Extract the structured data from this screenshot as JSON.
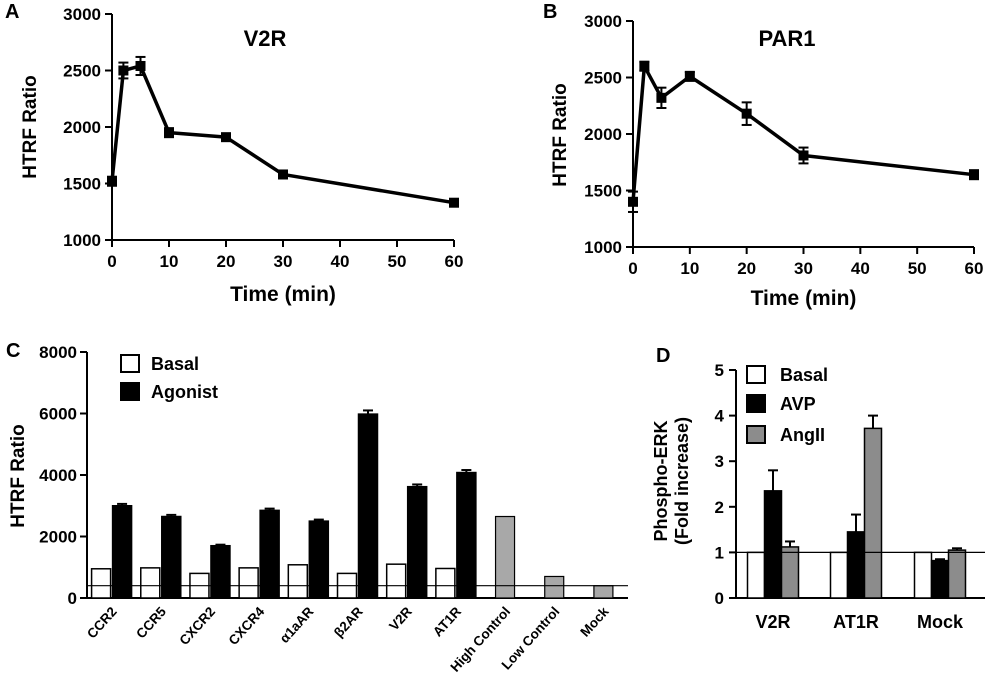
{
  "colors": {
    "basal": "#ffffff",
    "agonist": "#000000",
    "control": "#a8a8a8",
    "angii": "#8c8c8c",
    "ink": "#000000"
  },
  "chart_data": [
    {
      "id": "A",
      "panel_label": "A",
      "type": "line",
      "title": "V2R",
      "xlabel": "Time (min)",
      "ylabel": "HTRF Ratio",
      "xlim": [
        0,
        60
      ],
      "ylim": [
        1000,
        3000
      ],
      "xticks": [
        0,
        10,
        20,
        30,
        40,
        50,
        60
      ],
      "yticks": [
        1000,
        1500,
        2000,
        2500,
        3000
      ],
      "x": [
        0,
        2,
        5,
        10,
        20,
        30,
        60
      ],
      "y": [
        1520,
        2500,
        2540,
        1950,
        1910,
        1580,
        1330
      ],
      "err": [
        40,
        70,
        80,
        40,
        15,
        35,
        15
      ]
    },
    {
      "id": "B",
      "panel_label": "B",
      "type": "line",
      "title": "PAR1",
      "xlabel": "Time (min)",
      "ylabel": "HTRF Ratio",
      "xlim": [
        0,
        60
      ],
      "ylim": [
        1000,
        3000
      ],
      "xticks": [
        0,
        10,
        20,
        30,
        40,
        50,
        60
      ],
      "yticks": [
        1000,
        1500,
        2000,
        2500,
        3000
      ],
      "x": [
        0,
        2,
        5,
        10,
        20,
        30,
        60
      ],
      "y": [
        1400,
        2600,
        2320,
        2510,
        2180,
        1810,
        1640
      ],
      "err": [
        90,
        40,
        90,
        40,
        100,
        70,
        40
      ]
    },
    {
      "id": "C",
      "panel_label": "C",
      "type": "bar",
      "title": "",
      "xlabel": "",
      "ylabel": "HTRF Ratio",
      "ylim": [
        0,
        8000
      ],
      "yticks": [
        0,
        2000,
        4000,
        6000,
        8000
      ],
      "legend": [
        "Basal",
        "Agonist"
      ],
      "reference_line": 400,
      "categories": [
        "CCR2",
        "CCR5",
        "CXCR2",
        "CXCR4",
        "α1aAR",
        "β2AR",
        "V2R",
        "AT1R",
        "High Control",
        "Low Control",
        "Mock"
      ],
      "series": [
        {
          "name": "Basal",
          "values": [
            950,
            980,
            800,
            980,
            1080,
            800,
            1100,
            960,
            null,
            null,
            null
          ]
        },
        {
          "name": "Agonist",
          "values": [
            3000,
            2650,
            1700,
            2850,
            2500,
            5980,
            3620,
            4080,
            null,
            null,
            null
          ]
        }
      ],
      "controls": [
        {
          "category": "High Control",
          "value": 2650
        },
        {
          "category": "Low Control",
          "value": 700
        },
        {
          "category": "Mock",
          "value": 400
        }
      ]
    },
    {
      "id": "D",
      "panel_label": "D",
      "type": "bar",
      "title": "",
      "xlabel": "",
      "ylabel": "Phospho-ERK",
      "ylabel2": "(Fold increase)",
      "ylim": [
        0,
        5
      ],
      "yticks": [
        0,
        1,
        2,
        3,
        4,
        5
      ],
      "legend": [
        "Basal",
        "AVP",
        "AngII"
      ],
      "reference_line": 1,
      "categories": [
        "V2R",
        "AT1R",
        "Mock"
      ],
      "series": [
        {
          "name": "Basal",
          "values": [
            1.0,
            1.0,
            1.0
          ],
          "err": [
            0,
            0,
            0
          ]
        },
        {
          "name": "AVP",
          "values": [
            2.35,
            1.45,
            0.82
          ],
          "err": [
            0.45,
            0.38,
            0.03
          ]
        },
        {
          "name": "AngII",
          "values": [
            1.12,
            3.72,
            1.05
          ],
          "err": [
            0.12,
            0.28,
            0.04
          ]
        }
      ]
    }
  ]
}
